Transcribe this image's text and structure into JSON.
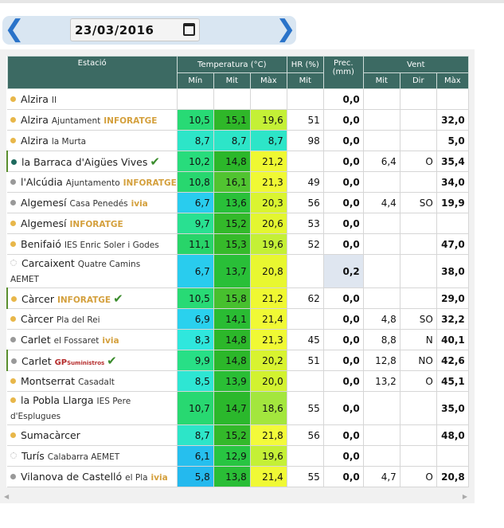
{
  "date": "23/03/2016",
  "headers": {
    "station": "Estació",
    "temp_group": "Temperatura (°C)",
    "hr_group": "HR (%)",
    "prec_group": "Prec. (mm)",
    "wind_group": "Vent",
    "min": "Mín",
    "mit": "Mit",
    "max": "Màx",
    "dir": "Dir"
  },
  "colors": {
    "header_bg": "#3c6a63",
    "status_yellow": "#e8b74a",
    "status_grey": "#999999",
    "status_green": "#1f6a5e",
    "check": "#3a8c2c",
    "brand_inforatge": "#d4a03d",
    "brand_ivia": "#d4a03d",
    "brand_gp": "#b52c2c"
  },
  "stations": [
    {
      "name": "Alzira",
      "sub": "II",
      "brand": "",
      "dot": "yellow",
      "check": false,
      "tall": false,
      "tmin": "",
      "tmit": "",
      "tmax": "",
      "hr": "",
      "prec": "0,0",
      "vmit": "",
      "vdir": "",
      "vmax": ""
    },
    {
      "name": "Alzira",
      "sub": "Ajuntament",
      "brand": "INFORATGE",
      "dot": "yellow",
      "check": false,
      "tall": false,
      "tmin": "10,5",
      "tmit": "15,1",
      "tmax": "19,6",
      "hr": "51",
      "prec": "0,0",
      "vmit": "",
      "vdir": "",
      "vmax": "32,0"
    },
    {
      "name": "Alzira",
      "sub": "la Murta",
      "brand": "",
      "dot": "yellow",
      "check": false,
      "tall": false,
      "tmin": "8,7",
      "tmit": "8,7",
      "tmax": "8,7",
      "hr": "98",
      "prec": "0,0",
      "vmit": "",
      "vdir": "",
      "vmax": "5,0"
    },
    {
      "name": "la Barraca d'Aigües Vives",
      "sub": "",
      "brand": "",
      "dot": "green",
      "check": true,
      "tall": false,
      "mark": true,
      "tmin": "10,2",
      "tmit": "14,8",
      "tmax": "21,2",
      "hr": "",
      "prec": "0,0",
      "vmit": "6,4",
      "vdir": "O",
      "vmax": "35,4"
    },
    {
      "name": "l'Alcúdia",
      "sub": "Ajuntamento",
      "brand": "INFORATGE",
      "dot": "grey",
      "check": false,
      "tall": false,
      "tmin": "10,8",
      "tmit": "16,1",
      "tmax": "21,3",
      "hr": "49",
      "prec": "0,0",
      "vmit": "",
      "vdir": "",
      "vmax": "34,0"
    },
    {
      "name": "Algemesí",
      "sub": "Casa Penedés",
      "brand": "ivia",
      "dot": "grey",
      "check": false,
      "tall": false,
      "tmin": "6,7",
      "tmit": "13,6",
      "tmax": "20,3",
      "hr": "56",
      "prec": "0,0",
      "vmit": "4,4",
      "vdir": "SO",
      "vmax": "19,9"
    },
    {
      "name": "Algemesí",
      "sub": "",
      "brand": "INFORATGE",
      "dot": "yellow",
      "check": false,
      "tall": false,
      "tmin": "9,7",
      "tmit": "15,2",
      "tmax": "20,6",
      "hr": "53",
      "prec": "0,0",
      "vmit": "",
      "vdir": "",
      "vmax": ""
    },
    {
      "name": "Benifaió",
      "sub": "IES Enric Soler i Godes",
      "brand": "",
      "dot": "yellow",
      "check": false,
      "tall": false,
      "tmin": "11,1",
      "tmit": "15,3",
      "tmax": "19,6",
      "hr": "52",
      "prec": "0,0",
      "vmit": "",
      "vdir": "",
      "vmax": "47,0"
    },
    {
      "name": "Carcaixent",
      "sub": "Quatre Camins",
      "line2": "AEMET",
      "brand": "",
      "dot": "empty",
      "check": false,
      "tall": true,
      "tmin": "6,7",
      "tmit": "13,7",
      "tmax": "20,8",
      "hr": "",
      "prec": "0,2",
      "prec_tint": true,
      "vmit": "",
      "vdir": "",
      "vmax": "38,0"
    },
    {
      "name": "Càrcer",
      "sub": "",
      "brand": "INFORATGE",
      "dot": "yellow",
      "check": true,
      "tall": false,
      "mark": true,
      "tmin": "10,5",
      "tmit": "15,8",
      "tmax": "21,2",
      "hr": "62",
      "prec": "0,0",
      "vmit": "",
      "vdir": "",
      "vmax": "29,0"
    },
    {
      "name": "Càrcer",
      "sub": "Pla del Rei",
      "brand": "",
      "dot": "yellow",
      "check": false,
      "tall": false,
      "tmin": "6,9",
      "tmit": "14,1",
      "tmax": "21,4",
      "hr": "",
      "prec": "0,0",
      "vmit": "4,8",
      "vdir": "SO",
      "vmax": "32,2"
    },
    {
      "name": "Carlet",
      "sub": "el Fossaret",
      "brand": "ivia",
      "dot": "grey",
      "check": false,
      "tall": false,
      "tmin": "8,3",
      "tmit": "14,8",
      "tmax": "21,3",
      "hr": "45",
      "prec": "0,0",
      "vmit": "8,8",
      "vdir": "N",
      "vmax": "40,1"
    },
    {
      "name": "Carlet",
      "sub": "",
      "brand": "GP",
      "brand_tail": "Suministros",
      "dot": "grey",
      "check": true,
      "tall": false,
      "mark": true,
      "tmin": "9,9",
      "tmit": "14,8",
      "tmax": "20,2",
      "hr": "51",
      "prec": "0,0",
      "vmit": "12,8",
      "vdir": "NO",
      "vmax": "42,6"
    },
    {
      "name": "Montserrat",
      "sub": "Casadalt",
      "brand": "",
      "dot": "yellow",
      "check": false,
      "tall": false,
      "tmin": "8,5",
      "tmit": "13,9",
      "tmax": "20,0",
      "hr": "",
      "prec": "0,0",
      "vmit": "13,2",
      "vdir": "O",
      "vmax": "45,1"
    },
    {
      "name": "la Pobla Llarga",
      "sub": "IES Pere",
      "line2": "d'Esplugues",
      "brand": "",
      "dot": "yellow",
      "check": false,
      "tall": true,
      "tmin": "10,7",
      "tmit": "14,7",
      "tmax": "18,6",
      "hr": "55",
      "prec": "0,0",
      "vmit": "",
      "vdir": "",
      "vmax": "35,0"
    },
    {
      "name": "Sumacàrcer",
      "sub": "",
      "brand": "",
      "dot": "yellow",
      "check": false,
      "tall": false,
      "tmin": "8,7",
      "tmit": "15,2",
      "tmax": "21,8",
      "hr": "56",
      "prec": "0,0",
      "vmit": "",
      "vdir": "",
      "vmax": "48,0"
    },
    {
      "name": "Turís",
      "sub": "Calabarra AEMET",
      "brand": "",
      "dot": "empty",
      "check": false,
      "tall": false,
      "tmin": "6,1",
      "tmit": "12,9",
      "tmax": "19,6",
      "hr": "",
      "prec": "0,0",
      "vmit": "",
      "vdir": "",
      "vmax": ""
    },
    {
      "name": "Vilanova de Castelló",
      "sub": "el Pla",
      "brand": "ivia",
      "dot": "grey",
      "check": false,
      "tall": false,
      "tmin": "5,8",
      "tmit": "13,8",
      "tmax": "21,4",
      "hr": "55",
      "prec": "0,0",
      "vmit": "4,7",
      "vdir": "O",
      "vmax": "20,8"
    }
  ]
}
